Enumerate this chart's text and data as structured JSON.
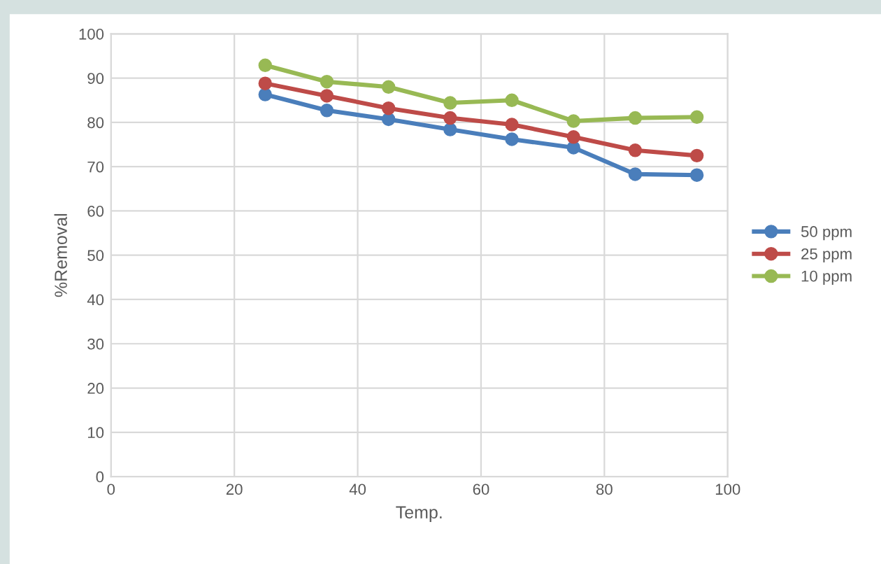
{
  "chart_data": {
    "type": "line",
    "xlabel": "Temp.",
    "ylabel": "%Removal",
    "x": [
      25,
      35,
      45,
      55,
      65,
      75,
      85,
      95
    ],
    "series": [
      {
        "name": "50 ppm",
        "color": "#4a7ebb",
        "values": [
          86.3,
          82.7,
          80.7,
          78.4,
          76.2,
          74.3,
          68.3,
          68.1
        ]
      },
      {
        "name": "25 ppm",
        "color": "#be4b48",
        "values": [
          88.8,
          86.0,
          83.2,
          81.0,
          79.5,
          76.7,
          73.7,
          72.5
        ]
      },
      {
        "name": "10 ppm",
        "color": "#98b954",
        "values": [
          92.9,
          89.2,
          88.0,
          84.4,
          85.0,
          80.3,
          81.0,
          81.2
        ]
      }
    ],
    "xlim": [
      0,
      100
    ],
    "xticks": [
      0,
      20,
      40,
      60,
      80,
      100
    ],
    "ylim": [
      0,
      100
    ],
    "yticks": [
      0,
      10,
      20,
      30,
      40,
      50,
      60,
      70,
      80,
      90,
      100
    ],
    "grid": true,
    "legend": "right",
    "marker": "circle",
    "line_style": "solid"
  }
}
